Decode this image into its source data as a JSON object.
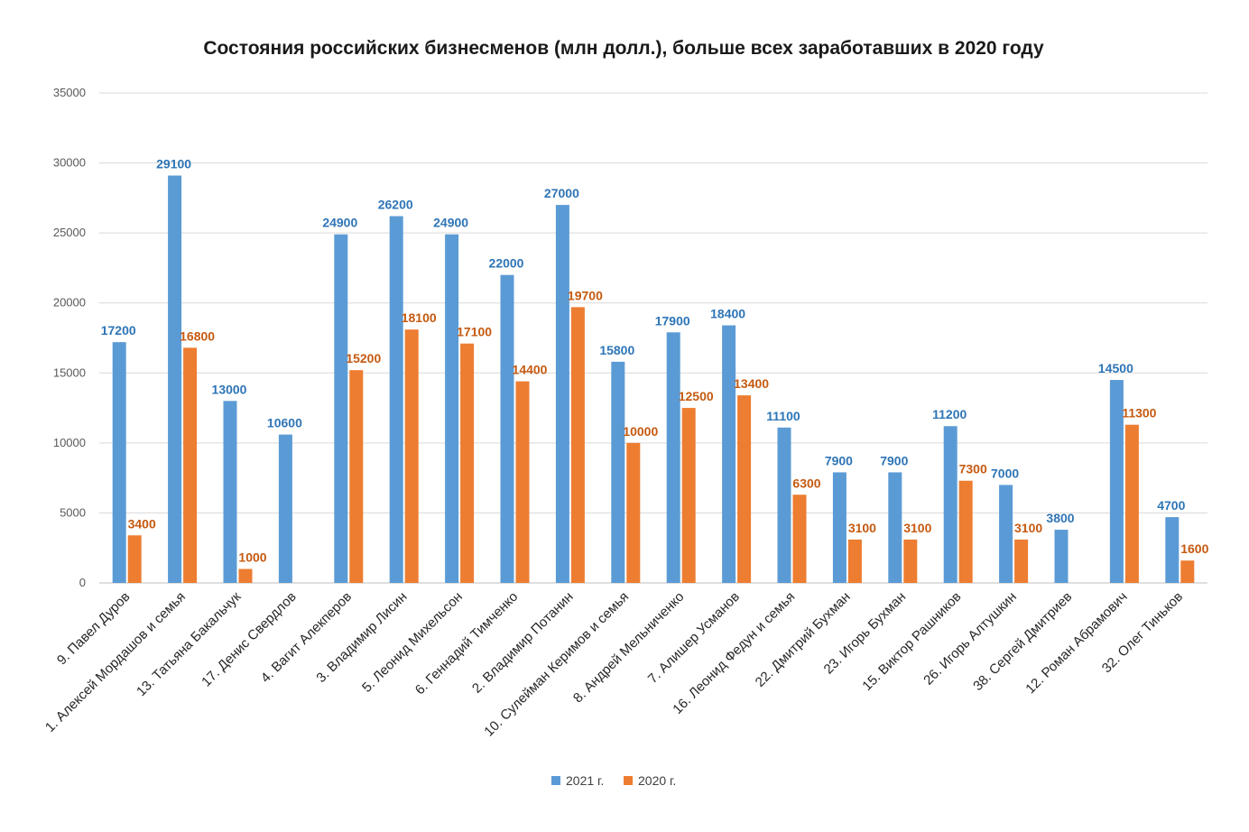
{
  "chart_data": {
    "type": "bar",
    "title": "Состояния российских бизнесменов (млн долл.), больше всех заработавших в 2020 году",
    "xlabel": "",
    "ylabel": "",
    "ylim": [
      0,
      35000
    ],
    "yticks": [
      0,
      5000,
      10000,
      15000,
      20000,
      25000,
      30000,
      35000
    ],
    "grid": true,
    "legend_position": "bottom",
    "categories": [
      "9. Павел Дуров",
      "1. Алексей Мордашов и семья",
      "13. Татьяна Бакальчук",
      "17. Денис Свердлов",
      "4. Вагит Алекперов",
      "3. Владимир Лисин",
      "5. Леонид Михельсон",
      "6. Геннадий Тимченко",
      "2. Владимир Потанин",
      "10. Сулейман Керимов и семья",
      "8. Андрей Мельниченко",
      "7. Алишер Усманов",
      "16. Леонид Федун и семья",
      "22. Дмитрий Бухман",
      "23. Игорь Бухман",
      "15. Виктор Рашников",
      "26. Игорь Алтушкин",
      "38. Сергей Дмитриев",
      "12. Роман Абрамович",
      "32. Олег Тиньков"
    ],
    "series": [
      {
        "name": "2021 г.",
        "color": "#5b9bd5",
        "label_color": "#2e75b6",
        "values": [
          17200,
          29100,
          13000,
          10600,
          24900,
          26200,
          24900,
          22000,
          27000,
          15800,
          17900,
          18400,
          11100,
          7900,
          7900,
          11200,
          7000,
          3800,
          14500,
          4700
        ]
      },
      {
        "name": "2020 г.",
        "color": "#ed7d31",
        "label_color": "#c55a11",
        "values": [
          3400,
          16800,
          1000,
          null,
          15200,
          18100,
          17100,
          14400,
          19700,
          10000,
          12500,
          13400,
          6300,
          3100,
          3100,
          7300,
          3100,
          null,
          11300,
          1600
        ]
      }
    ]
  }
}
